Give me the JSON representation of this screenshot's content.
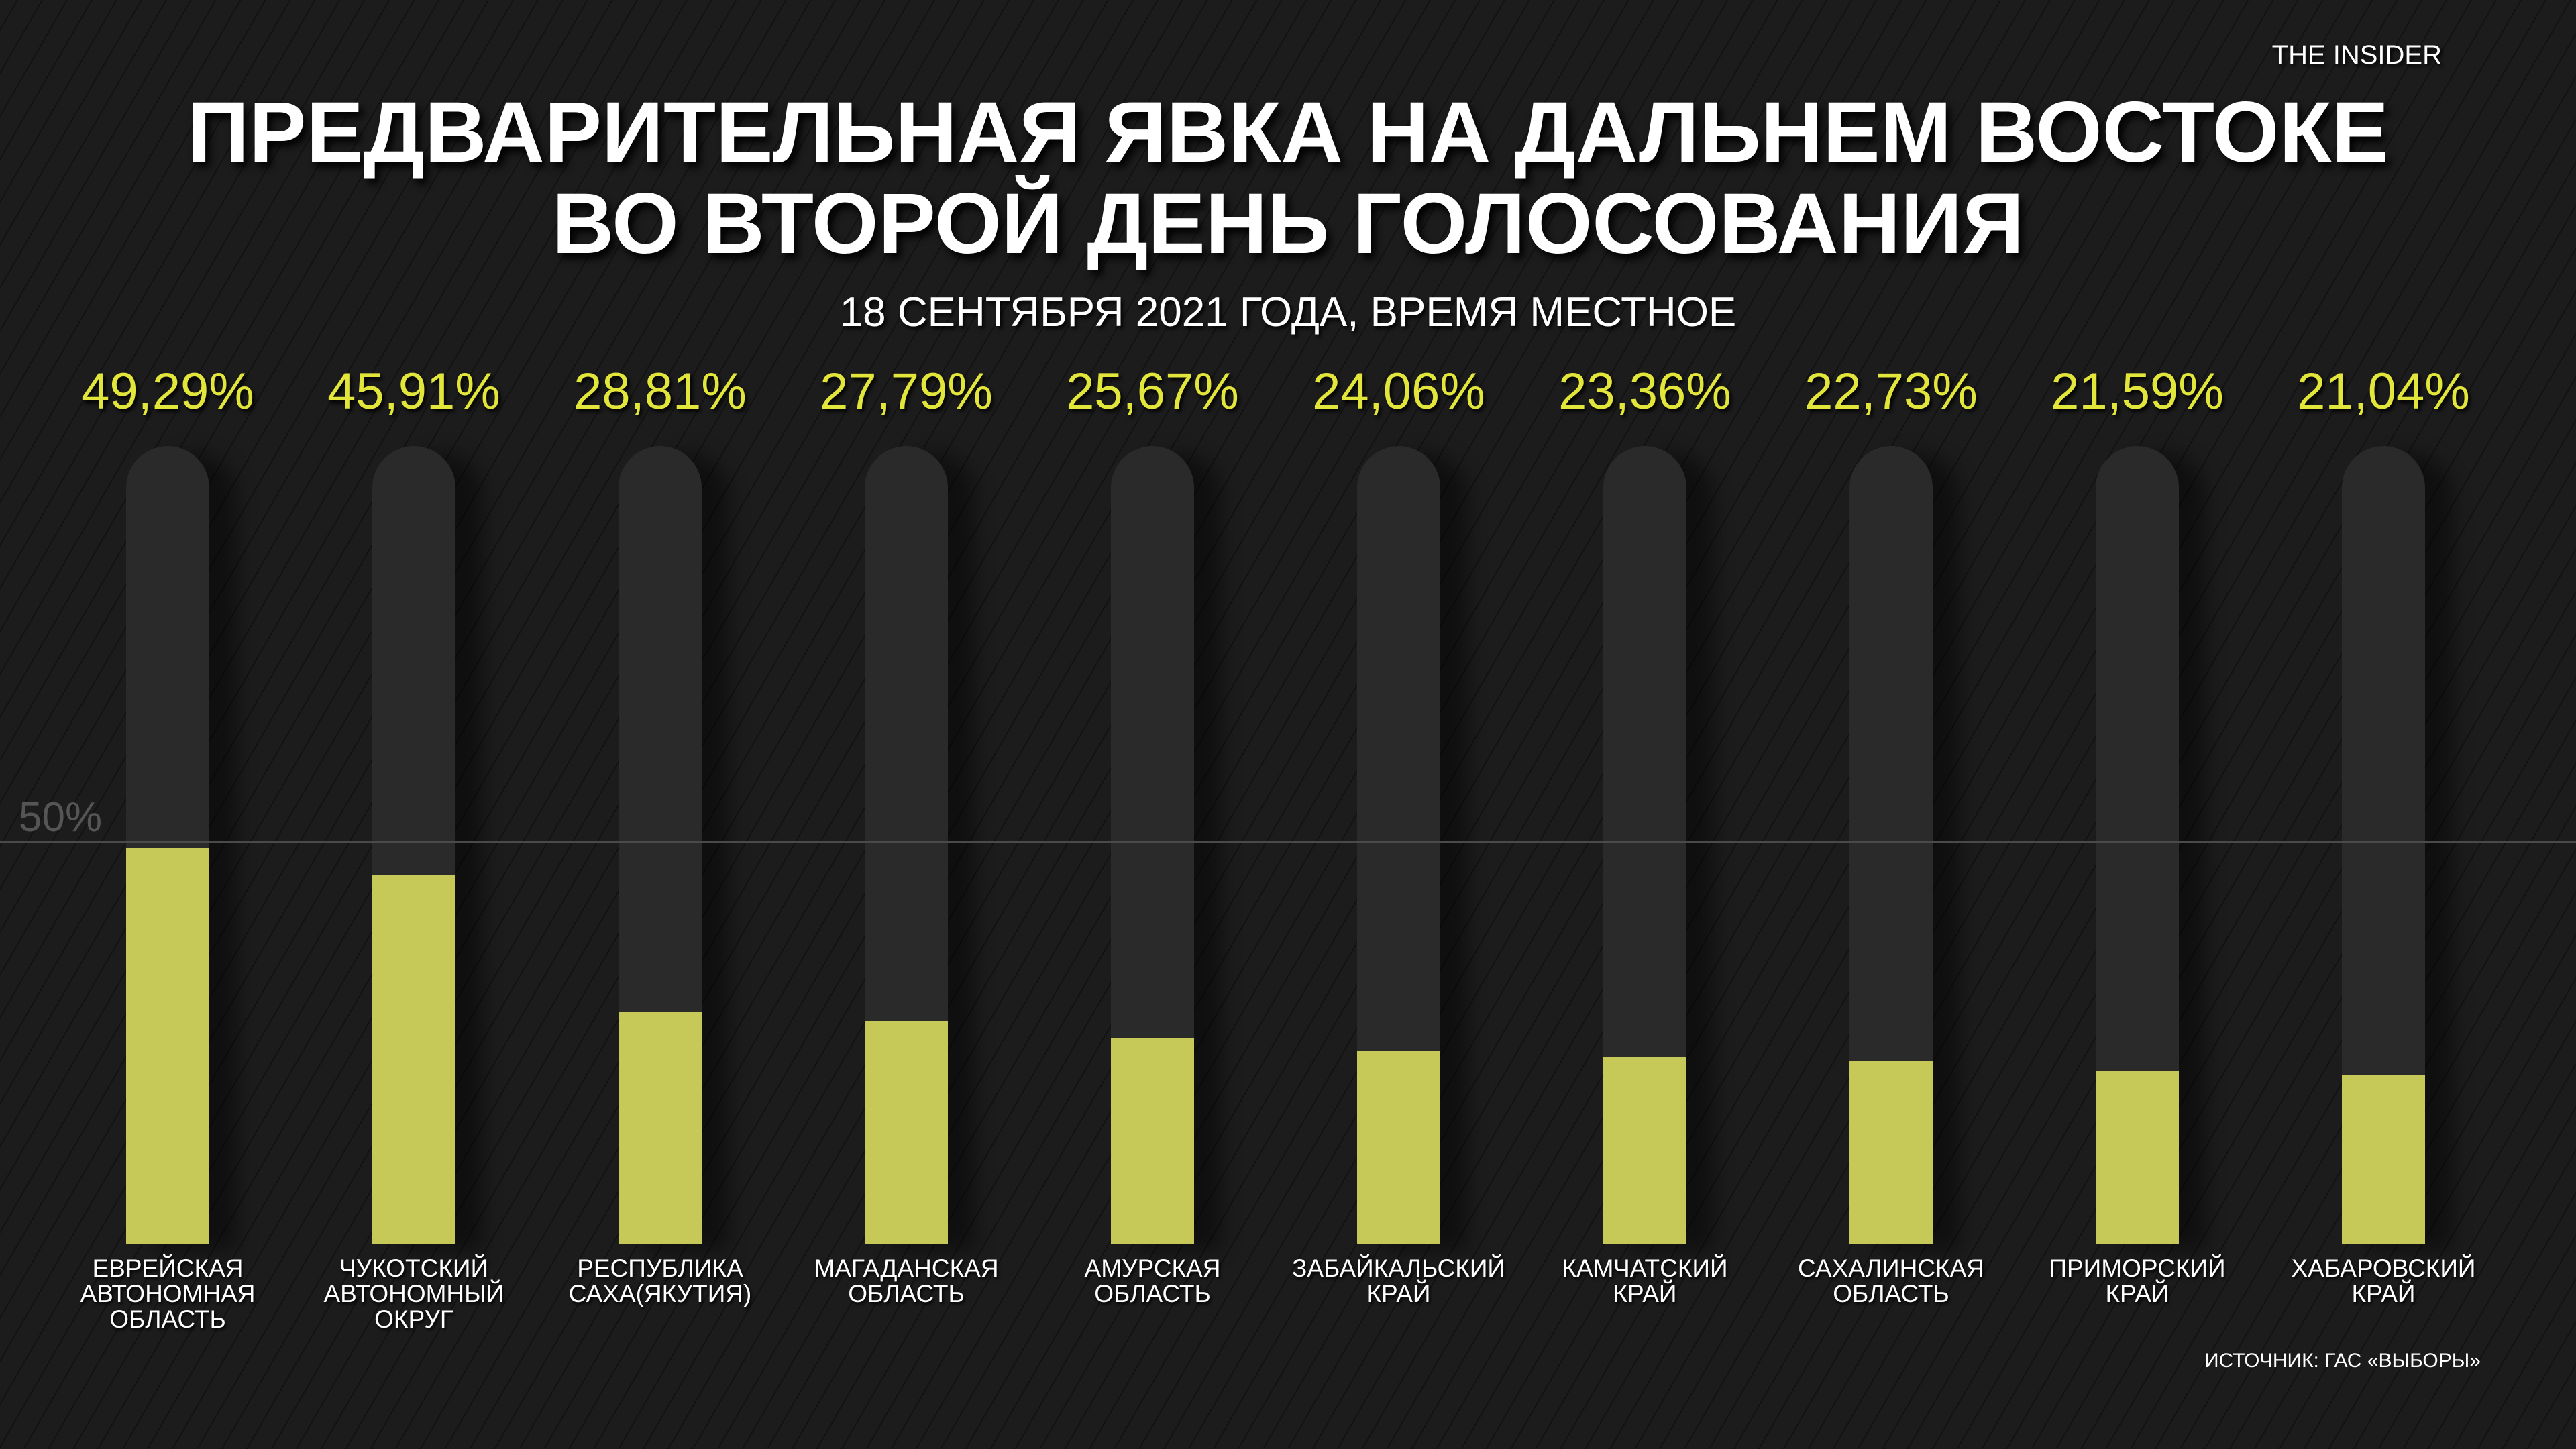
{
  "brand": "THE INSIDER",
  "title_line1": "ПРЕДВАРИТЕЛЬНАЯ ЯВКА НА ДАЛЬНЕМ ВОСТОКЕ",
  "title_line2": "ВО ВТОРОЙ ДЕНЬ ГОЛОСОВАНИЯ",
  "subtitle": "18 СЕНТЯБРЯ 2021 ГОДА, ВРЕМЯ МЕСТНОЕ",
  "source": "ИСТОЧНИК: ГАС «ВЫБОРЫ»",
  "colors": {
    "bar": "#c6c957",
    "value_text": "#e2e63a",
    "track": "#2a2a2a",
    "background": "#1c1c1c"
  },
  "chart_data": {
    "type": "bar",
    "title": "ПРЕДВАРИТЕЛЬНАЯ ЯВКА НА ДАЛЬНЕМ ВОСТОКЕ ВО ВТОРОЙ ДЕНЬ ГОЛОСОВАНИЯ",
    "ylim": [
      0,
      100
    ],
    "reference_line": {
      "value": 50,
      "label": "50%"
    },
    "grid": false,
    "categories": [
      [
        "ЕВРЕЙСКАЯ",
        "АВТОНОМНАЯ",
        "ОБЛАСТЬ"
      ],
      [
        "ЧУКОТСКИЙ",
        "АВТОНОМНЫЙ",
        "ОКРУГ"
      ],
      [
        "РЕСПУБЛИКА",
        "САХА(ЯКУТИЯ)"
      ],
      [
        "МАГАДАНСКАЯ",
        "ОБЛАСТЬ"
      ],
      [
        "АМУРСКАЯ",
        "ОБЛАСТЬ"
      ],
      [
        "ЗАБАЙКАЛЬСКИЙ",
        "КРАЙ"
      ],
      [
        "КАМЧАТСКИЙ",
        "КРАЙ"
      ],
      [
        "САХАЛИНСКАЯ",
        "ОБЛАСТЬ"
      ],
      [
        "ПРИМОРСКИЙ",
        "КРАЙ"
      ],
      [
        "ХАБАРОВСКИЙ",
        "КРАЙ"
      ]
    ],
    "values": [
      49.29,
      45.91,
      28.81,
      27.79,
      25.67,
      24.06,
      23.36,
      22.73,
      21.59,
      21.04
    ],
    "data_labels": [
      "49,29%",
      "45,91%",
      "28,81%",
      "27,79%",
      "25,67%",
      "24,06%",
      "23,36%",
      "22,73%",
      "21,59%",
      "21,04%"
    ]
  }
}
